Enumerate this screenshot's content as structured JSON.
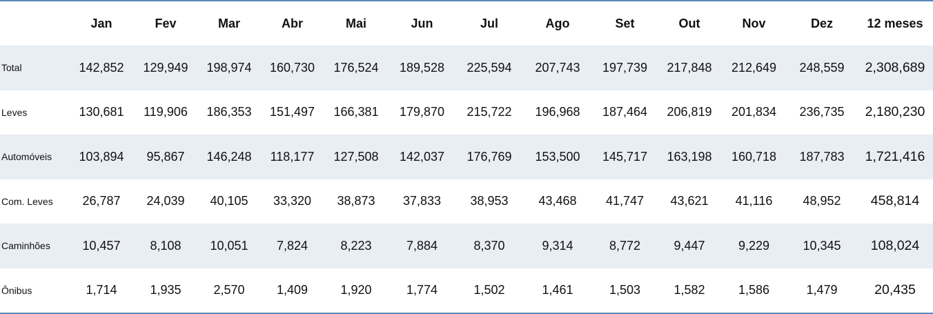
{
  "table": {
    "columns": [
      "Jan",
      "Fev",
      "Mar",
      "Abr",
      "Mai",
      "Jun",
      "Jul",
      "Ago",
      "Set",
      "Out",
      "Nov",
      "Dez",
      "12 meses"
    ],
    "rows": [
      {
        "label": "Total",
        "values": [
          "142,852",
          "129,949",
          "198,974",
          "160,730",
          "176,524",
          "189,528",
          "225,594",
          "207,743",
          "197,739",
          "217,848",
          "212,649",
          "248,559",
          "2,308,689"
        ]
      },
      {
        "label": "Leves",
        "values": [
          "130,681",
          "119,906",
          "186,353",
          "151,497",
          "166,381",
          "179,870",
          "215,722",
          "196,968",
          "187,464",
          "206,819",
          "201,834",
          "236,735",
          "2,180,230"
        ]
      },
      {
        "label": "Automóveis",
        "values": [
          "103,894",
          "95,867",
          "146,248",
          "118,177",
          "127,508",
          "142,037",
          "176,769",
          "153,500",
          "145,717",
          "163,198",
          "160,718",
          "187,783",
          "1,721,416"
        ]
      },
      {
        "label": "Com. Leves",
        "values": [
          "26,787",
          "24,039",
          "40,105",
          "33,320",
          "38,873",
          "37,833",
          "38,953",
          "43,468",
          "41,747",
          "43,621",
          "41,116",
          "48,952",
          "458,814"
        ]
      },
      {
        "label": "Caminhões",
        "values": [
          "10,457",
          "8,108",
          "10,051",
          "7,824",
          "8,223",
          "7,884",
          "8,370",
          "9,314",
          "8,772",
          "9,447",
          "9,229",
          "10,345",
          "108,024"
        ]
      },
      {
        "label": "Ônibus",
        "values": [
          "1,714",
          "1,935",
          "2,570",
          "1,409",
          "1,920",
          "1,774",
          "1,502",
          "1,461",
          "1,503",
          "1,582",
          "1,586",
          "1,479",
          "20,435"
        ]
      }
    ]
  }
}
